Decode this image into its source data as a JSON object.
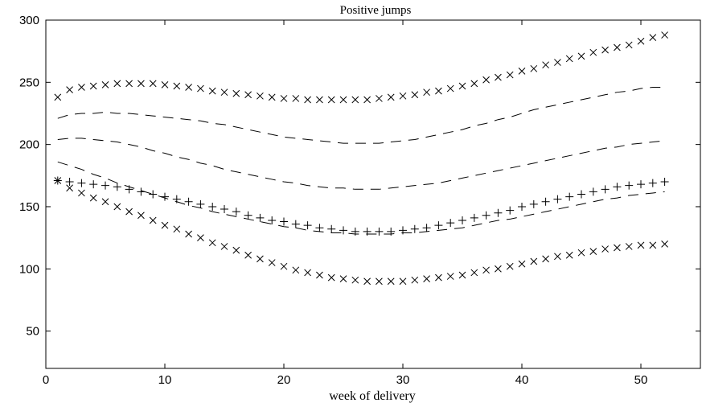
{
  "chart_data": {
    "type": "line",
    "title": "Positive jumps",
    "xlabel": "week of delivery",
    "ylabel": "",
    "xlim": [
      0,
      55
    ],
    "ylim": [
      20,
      300
    ],
    "xticks": [
      0,
      10,
      20,
      30,
      40,
      50
    ],
    "yticks": [
      50,
      100,
      150,
      200,
      250,
      300
    ],
    "grid": false,
    "legend": "none",
    "x": [
      1,
      2,
      3,
      4,
      5,
      6,
      7,
      8,
      9,
      10,
      11,
      12,
      13,
      14,
      15,
      16,
      17,
      18,
      19,
      20,
      21,
      22,
      23,
      24,
      25,
      26,
      27,
      28,
      29,
      30,
      31,
      32,
      33,
      34,
      35,
      36,
      37,
      38,
      39,
      40,
      41,
      42,
      43,
      44,
      45,
      46,
      47,
      48,
      49,
      50,
      51,
      52
    ],
    "series": [
      {
        "style": "x-markers",
        "values": [
          238,
          244,
          246,
          247,
          248,
          249,
          249,
          249,
          249,
          248,
          247,
          246,
          245,
          243,
          242,
          241,
          240,
          239,
          238,
          237,
          237,
          236,
          236,
          236,
          236,
          236,
          236,
          237,
          238,
          239,
          240,
          242,
          243,
          245,
          247,
          249,
          252,
          254,
          256,
          259,
          261,
          264,
          266,
          269,
          271,
          274,
          276,
          278,
          280,
          283,
          286,
          288
        ]
      },
      {
        "style": "dashed",
        "values": [
          221,
          224,
          225,
          225,
          226,
          225,
          225,
          224,
          223,
          222,
          221,
          220,
          219,
          217,
          216,
          214,
          212,
          210,
          208,
          206,
          205,
          204,
          203,
          202,
          201,
          201,
          201,
          201,
          202,
          203,
          204,
          206,
          208,
          210,
          212,
          215,
          217,
          220,
          222,
          225,
          228,
          230,
          232,
          234,
          236,
          238,
          240,
          242,
          243,
          245,
          246,
          246
        ]
      },
      {
        "style": "dashed",
        "values": [
          204,
          205,
          205,
          204,
          203,
          202,
          200,
          198,
          195,
          193,
          190,
          188,
          185,
          183,
          180,
          178,
          176,
          174,
          172,
          170,
          169,
          167,
          166,
          165,
          165,
          164,
          164,
          164,
          165,
          166,
          167,
          168,
          169,
          171,
          173,
          175,
          177,
          179,
          181,
          183,
          185,
          187,
          189,
          191,
          193,
          195,
          197,
          198,
          200,
          201,
          202,
          203
        ]
      },
      {
        "style": "dashed",
        "values": [
          186,
          183,
          180,
          176,
          173,
          169,
          166,
          163,
          160,
          157,
          154,
          151,
          149,
          146,
          144,
          142,
          140,
          138,
          136,
          134,
          133,
          131,
          130,
          129,
          129,
          128,
          128,
          128,
          128,
          129,
          129,
          130,
          131,
          132,
          133,
          135,
          137,
          139,
          140,
          142,
          144,
          146,
          148,
          150,
          152,
          154,
          156,
          157,
          159,
          160,
          161,
          162
        ]
      },
      {
        "style": "plus-markers",
        "values": [
          171,
          170,
          169,
          168,
          167,
          166,
          164,
          162,
          160,
          158,
          156,
          154,
          152,
          150,
          148,
          146,
          143,
          141,
          139,
          138,
          136,
          135,
          133,
          132,
          131,
          130,
          130,
          130,
          130,
          131,
          132,
          133,
          135,
          137,
          139,
          141,
          143,
          145,
          147,
          150,
          152,
          154,
          156,
          158,
          160,
          162,
          164,
          166,
          167,
          168,
          169,
          170
        ]
      },
      {
        "style": "x-markers",
        "values": [
          171,
          165,
          161,
          157,
          154,
          150,
          146,
          143,
          139,
          135,
          132,
          128,
          125,
          121,
          118,
          115,
          111,
          108,
          105,
          102,
          99,
          97,
          95,
          93,
          92,
          91,
          90,
          90,
          90,
          90,
          91,
          92,
          93,
          94,
          95,
          97,
          99,
          100,
          102,
          104,
          106,
          108,
          110,
          111,
          113,
          114,
          116,
          117,
          118,
          119,
          119,
          120
        ]
      }
    ]
  }
}
